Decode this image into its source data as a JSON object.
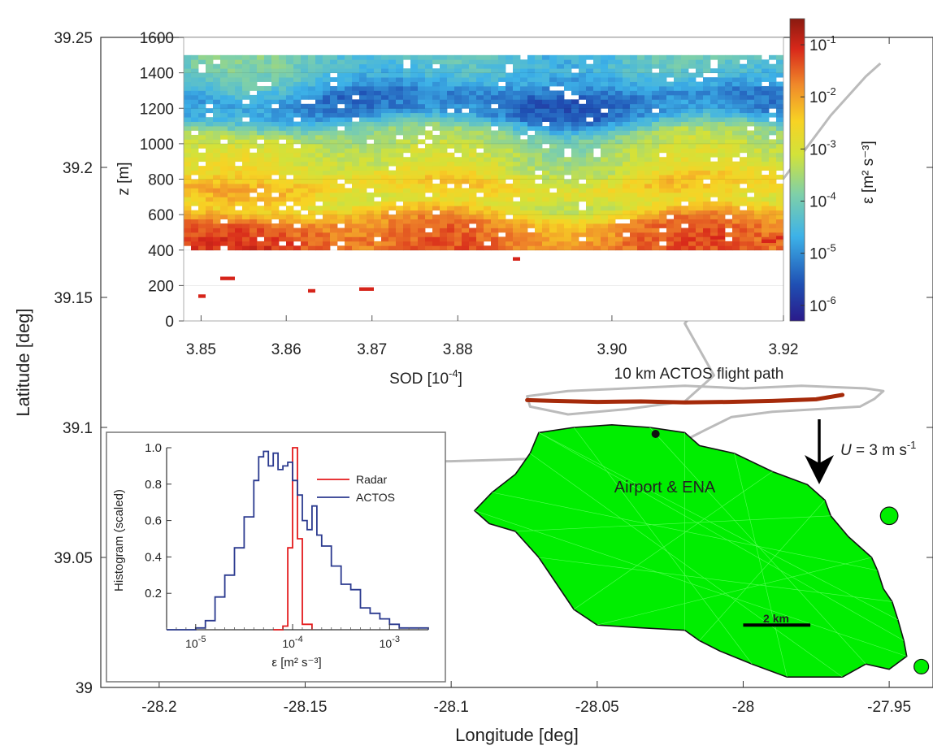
{
  "chart_data": [
    {
      "type": "scatter",
      "role": "main-map",
      "xlabel": "Longitude [deg]",
      "ylabel": "Latitude [deg]",
      "xlim": [
        -28.22,
        -27.935
      ],
      "ylim": [
        39.0,
        39.25
      ],
      "x_ticks": [
        -28.2,
        -28.15,
        -28.1,
        -28.05,
        -28.0,
        -27.95
      ],
      "x_tick_labels": [
        "-28.2",
        "-28.15",
        "-28.1",
        "-28.05",
        "-28",
        "-27.95"
      ],
      "y_ticks": [
        39.0,
        39.05,
        39.1,
        39.15,
        39.2,
        39.25
      ],
      "y_tick_labels": [
        "39",
        "39.05",
        "39.1",
        "39.15",
        "39.2",
        "39.25"
      ],
      "island_color": "#00ee00",
      "island_outline": [
        [
          -28.07,
          39.098
        ],
        [
          -28.058,
          39.1
        ],
        [
          -28.045,
          39.101
        ],
        [
          -28.032,
          39.1
        ],
        [
          -28.02,
          39.098
        ],
        [
          -28.015,
          39.093
        ],
        [
          -28.003,
          39.09
        ],
        [
          -27.99,
          39.083
        ],
        [
          -27.978,
          39.078
        ],
        [
          -27.972,
          39.072
        ],
        [
          -27.97,
          39.066
        ],
        [
          -27.964,
          39.058
        ],
        [
          -27.956,
          39.05
        ],
        [
          -27.954,
          39.045
        ],
        [
          -27.952,
          39.038
        ],
        [
          -27.949,
          39.033
        ],
        [
          -27.947,
          39.026
        ],
        [
          -27.945,
          39.018
        ],
        [
          -27.944,
          39.012
        ],
        [
          -27.95,
          39.007
        ],
        [
          -27.958,
          39.009
        ],
        [
          -27.966,
          39.004
        ],
        [
          -27.974,
          39.004
        ],
        [
          -27.985,
          39.004
        ],
        [
          -27.997,
          39.009
        ],
        [
          -28.008,
          39.014
        ],
        [
          -28.015,
          39.018
        ],
        [
          -28.02,
          39.022
        ],
        [
          -28.036,
          39.023
        ],
        [
          -28.05,
          39.024
        ],
        [
          -28.058,
          39.03
        ],
        [
          -28.064,
          39.04
        ],
        [
          -28.07,
          39.05
        ],
        [
          -28.078,
          39.06
        ],
        [
          -28.087,
          39.063
        ],
        [
          -28.092,
          39.068
        ],
        [
          -28.086,
          39.075
        ],
        [
          -28.078,
          39.082
        ],
        [
          -28.073,
          39.09
        ],
        [
          -28.07,
          39.098
        ]
      ],
      "islets": [
        {
          "center": [
            -27.95,
            39.066
          ],
          "radius": 0.003
        },
        {
          "center": [
            -27.939,
            39.008
          ],
          "radius": 0.0025
        }
      ],
      "flight_path": {
        "label": "10 km ACTOS flight path",
        "color": "#a52a0a",
        "x": [
          -28.074,
          -28.065,
          -28.05,
          -28.035,
          -28.02,
          -28.005,
          -27.99,
          -27.975,
          -27.966
        ],
        "y": [
          39.1105,
          39.1102,
          39.1098,
          39.11,
          39.1096,
          39.1098,
          39.1102,
          39.1108,
          39.1125
        ]
      },
      "aircraft_track": {
        "color": "#bbbbbb",
        "x": [
          -28.155,
          -28.15,
          -28.13,
          -28.1,
          -28.07,
          -28.055,
          -28.046,
          -28.035,
          -28.028,
          -28.024,
          -28.02,
          -28.013,
          -28.004,
          -27.99,
          -27.975,
          -27.96,
          -27.955,
          -27.952,
          -27.958,
          -27.98,
          -28.0,
          -28.02,
          -28.04,
          -28.06,
          -28.074,
          -28.073,
          -28.06,
          -28.04,
          -28.02,
          -28.01,
          -28.015,
          -28.02,
          -28.005,
          -27.99,
          -27.97,
          -27.958,
          -27.953
        ],
        "y": [
          39.085,
          39.086,
          39.087,
          39.087,
          39.088,
          39.09,
          39.093,
          39.094,
          39.095,
          39.094,
          39.095,
          39.099,
          39.104,
          39.106,
          39.107,
          39.108,
          39.111,
          39.114,
          39.115,
          39.116,
          39.115,
          39.116,
          39.115,
          39.114,
          39.112,
          39.108,
          39.105,
          39.107,
          39.11,
          39.12,
          39.13,
          39.14,
          39.16,
          39.19,
          39.22,
          39.235,
          39.24
        ]
      },
      "airport": {
        "label": "Airport & ENA",
        "x": -28.03,
        "y": 39.0975
      },
      "wind": {
        "label": "U = 3 m s",
        "label_parts": [
          "U",
          " = 3 m s",
          "-1"
        ]
      },
      "scale_bar": {
        "label": "2 km",
        "x0": -28.0,
        "x1": -27.977,
        "y": 39.024
      }
    },
    {
      "type": "heatmap",
      "role": "radar-panel",
      "xlabel": "SOD [10",
      "xlabel_exp": "-4",
      "xlabel_end": "]",
      "ylabel": "z [m]",
      "xlim": [
        3.848,
        3.918
      ],
      "ylim": [
        0,
        1600
      ],
      "x_ticks": [
        3.85,
        3.86,
        3.87,
        3.88,
        3.9,
        3.92
      ],
      "x_tick_labels": [
        "3.85",
        "3.86",
        "3.87",
        "3.88",
        "3.90",
        "3.92"
      ],
      "x_tick_positions": [
        0.029,
        0.171,
        0.314,
        0.457,
        0.714,
        1.0
      ],
      "y_ticks": [
        0,
        200,
        400,
        600,
        800,
        1000,
        1200,
        1400,
        1600
      ],
      "y_tick_labels": [
        "0",
        "200",
        "400",
        "600",
        "800",
        "1000",
        "1200",
        "1400",
        "1600"
      ],
      "colorbar": {
        "label": "ε [m² s⁻³]",
        "scale": "log",
        "range": [
          -6.3,
          -0.5
        ],
        "ticks": [
          -6,
          -5,
          -4,
          -3,
          -2,
          -1
        ],
        "tick_labels": [
          "10",
          "10",
          "10",
          "10",
          "10",
          "10"
        ],
        "tick_exps": [
          "-6",
          "-5",
          "-4",
          "-3",
          "-2",
          "-1"
        ]
      },
      "log_eps_profile": [
        {
          "z": 450,
          "log_eps": -1.5
        },
        {
          "z": 550,
          "log_eps": -1.8
        },
        {
          "z": 650,
          "log_eps": -2.9
        },
        {
          "z": 750,
          "log_eps": -2.4
        },
        {
          "z": 850,
          "log_eps": -3.0
        },
        {
          "z": 950,
          "log_eps": -3.2
        },
        {
          "z": 1050,
          "log_eps": -3.6
        },
        {
          "z": 1150,
          "log_eps": -5.0
        },
        {
          "z": 1250,
          "log_eps": -5.2
        },
        {
          "z": 1350,
          "log_eps": -4.5
        },
        {
          "z": 1450,
          "log_eps": -4.2
        }
      ]
    },
    {
      "type": "line",
      "role": "histogram-inset",
      "xlabel": "ε [m² s⁻³]",
      "ylabel": "Histogram (scaled)",
      "xscale": "log",
      "xlim": [
        -5.3,
        -2.6
      ],
      "ylim": [
        0,
        1.0
      ],
      "y_ticks": [
        0.2,
        0.4,
        0.6,
        0.8,
        1.0
      ],
      "y_tick_labels": [
        "0.2",
        "0.4",
        "0.6",
        "0.8",
        "1.0"
      ],
      "x_ticks": [
        -5,
        -4,
        -3
      ],
      "x_tick_labels": [
        "10",
        "10",
        "10"
      ],
      "x_tick_exps": [
        "-5",
        "-4",
        "-3"
      ],
      "legend_position": "top-right",
      "series": [
        {
          "name": "Radar",
          "color": "#e41a1c",
          "x": [
            -4.2,
            -4.1,
            -4.05,
            -4.0,
            -3.95,
            -3.9,
            -3.8
          ],
          "y": [
            0,
            0.02,
            0.45,
            1.0,
            0.5,
            0.03,
            0
          ]
        },
        {
          "name": "ACTOS",
          "color": "#2b3a8f",
          "x": [
            -5.3,
            -5.0,
            -4.9,
            -4.8,
            -4.7,
            -4.6,
            -4.5,
            -4.4,
            -4.35,
            -4.3,
            -4.25,
            -4.2,
            -4.15,
            -4.1,
            -4.05,
            -4.0,
            -3.95,
            -3.9,
            -3.85,
            -3.8,
            -3.75,
            -3.7,
            -3.6,
            -3.5,
            -3.4,
            -3.3,
            -3.2,
            -3.1,
            -3.0,
            -2.9,
            -2.6
          ],
          "y": [
            0,
            0.01,
            0.05,
            0.18,
            0.3,
            0.45,
            0.62,
            0.82,
            0.95,
            0.98,
            0.9,
            0.97,
            0.88,
            0.9,
            0.92,
            0.82,
            0.74,
            0.6,
            0.55,
            0.68,
            0.52,
            0.46,
            0.35,
            0.25,
            0.22,
            0.12,
            0.09,
            0.06,
            0.03,
            0.01,
            0
          ]
        }
      ]
    }
  ]
}
